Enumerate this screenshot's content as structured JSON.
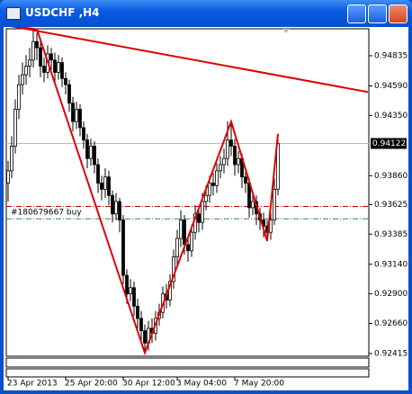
{
  "window": {
    "title": "USDCHF ,H4"
  },
  "chart_data": {
    "type": "candlestick",
    "open": [
      0.938,
      0.939,
      0.941,
      0.944,
      0.946,
      0.9468,
      0.9475,
      0.948,
      0.9495,
      0.949,
      0.9475,
      0.947,
      0.9485,
      0.948,
      0.947,
      0.9478,
      0.9465,
      0.946,
      0.9445,
      0.943,
      0.944,
      0.9425,
      0.9415,
      0.94,
      0.941,
      0.9395,
      0.938,
      0.9375,
      0.9385,
      0.937,
      0.9355,
      0.9365,
      0.935,
      0.9305,
      0.929,
      0.9295,
      0.928,
      0.927,
      0.926,
      0.925,
      0.9262,
      0.9258,
      0.927,
      0.9275,
      0.929,
      0.9285,
      0.93,
      0.932,
      0.9335,
      0.935,
      0.933,
      0.9325,
      0.934,
      0.9355,
      0.9348,
      0.9365,
      0.937,
      0.938,
      0.9378,
      0.939,
      0.9395,
      0.94,
      0.9415,
      0.941,
      0.9395,
      0.94,
      0.9385,
      0.938,
      0.936,
      0.9365,
      0.9355,
      0.935,
      0.9345,
      0.934,
      0.935,
      0.9375
    ],
    "high": [
      0.9398,
      0.9418,
      0.9448,
      0.9468,
      0.9478,
      0.9484,
      0.949,
      0.9505,
      0.9502,
      0.9496,
      0.9482,
      0.9492,
      0.949,
      0.9486,
      0.9484,
      0.9482,
      0.947,
      0.9464,
      0.945,
      0.9446,
      0.9444,
      0.943,
      0.942,
      0.9416,
      0.9414,
      0.94,
      0.9386,
      0.9392,
      0.939,
      0.9374,
      0.9372,
      0.9368,
      0.9354,
      0.931,
      0.9302,
      0.93,
      0.9286,
      0.9276,
      0.9265,
      0.9268,
      0.927,
      0.9276,
      0.9282,
      0.9296,
      0.9298,
      0.9306,
      0.9326,
      0.9342,
      0.9358,
      0.9354,
      0.9336,
      0.9346,
      0.9362,
      0.936,
      0.9372,
      0.9378,
      0.9386,
      0.9388,
      0.9396,
      0.9402,
      0.9408,
      0.943,
      0.9428,
      0.9416,
      0.9406,
      0.9404,
      0.9392,
      0.9384,
      0.9372,
      0.937,
      0.936,
      0.9356,
      0.935,
      0.9356,
      0.9384,
      0.942
    ],
    "low": [
      0.9365,
      0.9384,
      0.9404,
      0.9432,
      0.9452,
      0.946,
      0.9466,
      0.9474,
      0.948,
      0.9466,
      0.9462,
      0.9465,
      0.9472,
      0.9462,
      0.9464,
      0.9458,
      0.9452,
      0.9438,
      0.9422,
      0.9424,
      0.9418,
      0.9408,
      0.9392,
      0.9394,
      0.9388,
      0.9372,
      0.9366,
      0.9368,
      0.9362,
      0.9348,
      0.935,
      0.934,
      0.9298,
      0.9282,
      0.9284,
      0.9272,
      0.9262,
      0.9252,
      0.9242,
      0.9244,
      0.925,
      0.9252,
      0.9264,
      0.927,
      0.9278,
      0.928,
      0.9294,
      0.9314,
      0.9328,
      0.9322,
      0.9316,
      0.932,
      0.9334,
      0.934,
      0.9342,
      0.9358,
      0.9364,
      0.937,
      0.9372,
      0.9384,
      0.9388,
      0.9394,
      0.9402,
      0.9386,
      0.9388,
      0.9376,
      0.9372,
      0.9352,
      0.9354,
      0.9346,
      0.9342,
      0.9336,
      0.9333,
      0.9334,
      0.9346,
      0.937
    ],
    "close": [
      0.939,
      0.941,
      0.944,
      0.946,
      0.9468,
      0.9475,
      0.948,
      0.9495,
      0.949,
      0.9475,
      0.947,
      0.9485,
      0.948,
      0.947,
      0.9478,
      0.9465,
      0.946,
      0.9445,
      0.943,
      0.944,
      0.9425,
      0.9415,
      0.94,
      0.941,
      0.9395,
      0.938,
      0.9375,
      0.9385,
      0.937,
      0.9355,
      0.9365,
      0.935,
      0.9305,
      0.929,
      0.9295,
      0.928,
      0.927,
      0.926,
      0.925,
      0.9262,
      0.9258,
      0.927,
      0.9275,
      0.929,
      0.9285,
      0.93,
      0.932,
      0.9335,
      0.935,
      0.933,
      0.9325,
      0.934,
      0.9355,
      0.9348,
      0.9365,
      0.937,
      0.938,
      0.9378,
      0.939,
      0.9395,
      0.94,
      0.9415,
      0.941,
      0.9395,
      0.94,
      0.9385,
      0.938,
      0.936,
      0.9365,
      0.9355,
      0.935,
      0.9345,
      0.934,
      0.935,
      0.9375,
      0.9412
    ],
    "color": "#000000",
    "zigzag": {
      "x": [
        0,
        8,
        38,
        62,
        72,
        75
      ],
      "values": [
        0.9508,
        0.9505,
        0.9242,
        0.943,
        0.9333,
        0.942
      ],
      "color": "#dd0000"
    },
    "trendline": {
      "x": [
        0,
        100
      ],
      "values": [
        0.9508,
        0.9454
      ],
      "color": "#dd0000"
    },
    "level": {
      "value": 0.9361,
      "color": "#cc0000"
    },
    "order": {
      "label": "#180679667 buy",
      "value": 0.9351,
      "color": "#2e8b57"
    },
    "current_price": 0.94122,
    "xlim": [
      -0.5,
      100.25
    ],
    "xticks": [
      {
        "value": 0,
        "label": "23 Apr 2013"
      },
      {
        "value": 16,
        "label": "25 Apr 20:00"
      },
      {
        "value": 32,
        "label": "30 Apr 12:00"
      },
      {
        "value": 47,
        "label": "3 May 04:00"
      },
      {
        "value": 63,
        "label": "7 May 20:00"
      }
    ],
    "ylim": [
      0.92393,
      0.95054
    ],
    "yticks": [
      {
        "value": 0.94835,
        "label": "0.94835"
      },
      {
        "value": 0.9459,
        "label": "0.94590"
      },
      {
        "value": 0.9435,
        "label": "0.94350"
      },
      {
        "value": 0.9386,
        "label": "0.93860"
      },
      {
        "value": 0.93625,
        "label": "0.93625"
      },
      {
        "value": 0.93385,
        "label": "0.93385"
      },
      {
        "value": 0.9314,
        "label": "0.93140"
      },
      {
        "value": 0.929,
        "label": "0.92900"
      },
      {
        "value": 0.9266,
        "label": "0.92660"
      },
      {
        "value": 0.92415,
        "label": "0.92415"
      }
    ]
  }
}
